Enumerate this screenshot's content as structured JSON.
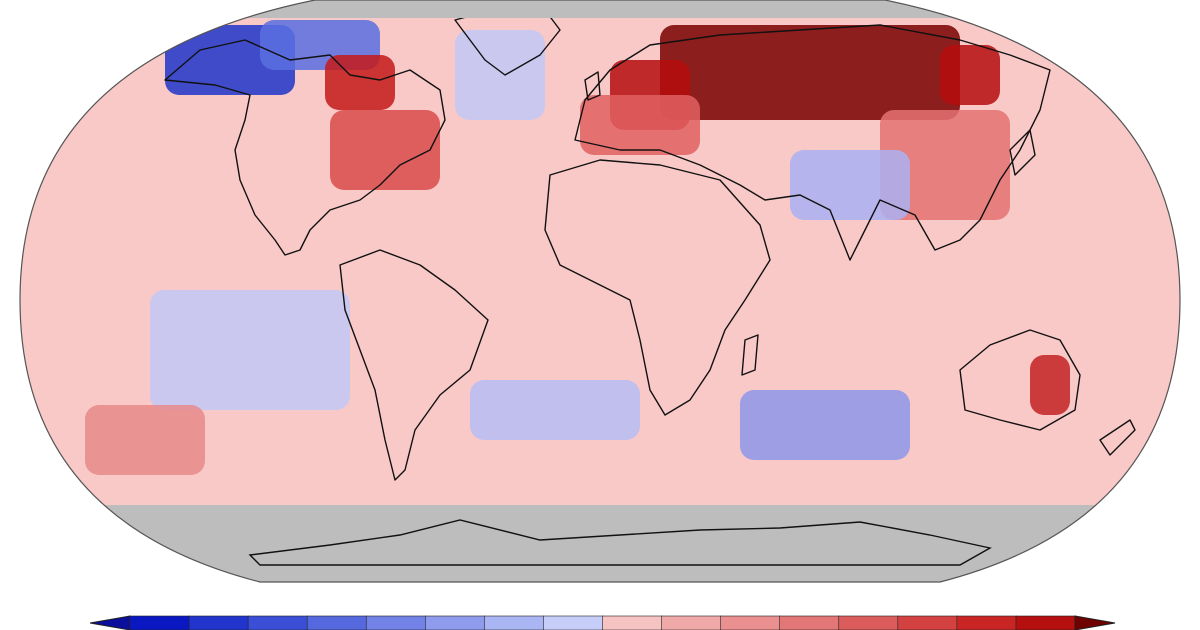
{
  "map": {
    "type": "temperature-anomaly-map",
    "projection": "robinson",
    "colors": {
      "ocean_base": "#f9c9c7",
      "land_base": "#fbd3d1",
      "no_data": "#bdbdbd",
      "outline": "#111111"
    },
    "anomaly_patches": [
      {
        "region": "alaska",
        "shade": "#1f35c8"
      },
      {
        "region": "canadian-arctic",
        "shade": "#5a6fe0"
      },
      {
        "region": "hudson-bay",
        "shade": "#c41a1a"
      },
      {
        "region": "eastern-canada",
        "shade": "#d94a4a"
      },
      {
        "region": "siberia",
        "shade": "#7a0000"
      },
      {
        "region": "russia-west",
        "shade": "#b50d0d"
      },
      {
        "region": "europe",
        "shade": "#e06060"
      },
      {
        "region": "east-asia",
        "shade": "#e57272"
      },
      {
        "region": "india",
        "shade": "#aab0f2"
      },
      {
        "region": "australia-east",
        "shade": "#c42222"
      },
      {
        "region": "north-atlantic",
        "shade": "#c3c8f7"
      },
      {
        "region": "south-pacific",
        "shade": "#c3c8f7"
      },
      {
        "region": "south-atlantic",
        "shade": "#b7bdf4"
      },
      {
        "region": "indian-ocean-south",
        "shade": "#8e97ea"
      },
      {
        "region": "south-pacific-east",
        "shade": "#e88a8a"
      }
    ]
  },
  "colorbar": {
    "steps": [
      "#0a18c2",
      "#2134cc",
      "#3a4fd6",
      "#5568de",
      "#7282e6",
      "#8f9cee",
      "#aab5f3",
      "#c6cdf8",
      "#f6c3c3",
      "#f0a9a9",
      "#ea9090",
      "#e37676",
      "#dc5c5c",
      "#d44141",
      "#c92525",
      "#b50f0f"
    ],
    "low_end_color": "#0a0f9c",
    "high_end_color": "#6e0000"
  }
}
